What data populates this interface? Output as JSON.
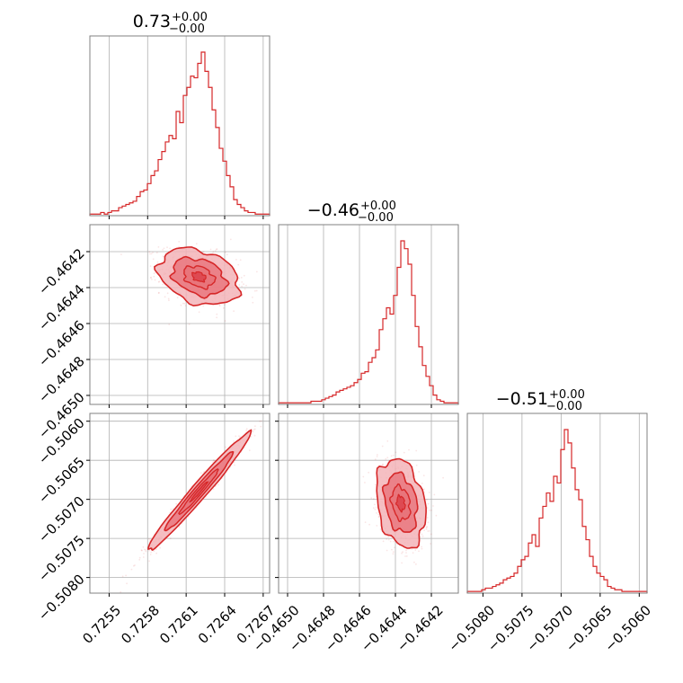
{
  "chart_data": {
    "type": "corner",
    "colors": {
      "line": "#d62728",
      "fill_inner": "#e8737a",
      "fill_outer": "#f3b4b8",
      "grid": "#b0b0b0",
      "frame": "#808080"
    },
    "grid": true,
    "parameters": [
      {
        "title_value": "0.73",
        "title_plus": "+0.00",
        "title_minus": "−0.00",
        "range": [
          0.72535,
          0.72675
        ],
        "ticks": [
          0.7255,
          0.7258,
          0.7261,
          0.7264,
          0.7267
        ],
        "tick_labels": [
          "0.7255",
          "0.7258",
          "0.7261",
          "0.7264",
          "0.7267"
        ]
      },
      {
        "title_value": "−0.46",
        "title_plus": "+0.00",
        "title_minus": "−0.00",
        "range": [
          -0.46505,
          -0.46405
        ],
        "ticks": [
          -0.465,
          -0.4648,
          -0.4646,
          -0.4644,
          -0.4642
        ],
        "tick_labels": [
          "−0.4650",
          "−0.4648",
          "−0.4646",
          "−0.4644",
          "−0.4642"
        ]
      },
      {
        "title_value": "−0.51",
        "title_plus": "+0.00",
        "title_minus": "−0.00",
        "range": [
          -0.5082,
          -0.5059
        ],
        "ticks": [
          -0.508,
          -0.5075,
          -0.507,
          -0.5065,
          -0.506
        ],
        "tick_labels": [
          "−0.5080",
          "−0.5075",
          "−0.5070",
          "−0.5065",
          "−0.5060"
        ]
      }
    ],
    "histograms": [
      {
        "param": 0,
        "bins": 50,
        "range": [
          0.72535,
          0.72675
        ],
        "counts": [
          1,
          1,
          1,
          2,
          1,
          2,
          3,
          3,
          5,
          6,
          7,
          8,
          9,
          12,
          15,
          16,
          20,
          25,
          28,
          35,
          40,
          46,
          50,
          48,
          65,
          58,
          75,
          80,
          87,
          86,
          95,
          102,
          90,
          80,
          66,
          55,
          42,
          34,
          25,
          18,
          10,
          7,
          5,
          3,
          2,
          2,
          1,
          1,
          1,
          1
        ]
      },
      {
        "param": 1,
        "bins": 50,
        "range": [
          -0.46505,
          -0.46405
        ],
        "counts": [
          1,
          1,
          1,
          1,
          1,
          1,
          1,
          1,
          1,
          2,
          2,
          2,
          3,
          4,
          5,
          6,
          8,
          9,
          10,
          11,
          12,
          14,
          16,
          20,
          21,
          27,
          30,
          35,
          48,
          55,
          62,
          58,
          70,
          88,
          105,
          100,
          90,
          70,
          50,
          37,
          25,
          18,
          12,
          6,
          3,
          2,
          1,
          1,
          1,
          1
        ]
      },
      {
        "param": 2,
        "bins": 50,
        "range": [
          -0.5082,
          -0.5059
        ],
        "counts": [
          1,
          1,
          1,
          1,
          2,
          3,
          3,
          4,
          5,
          6,
          8,
          9,
          10,
          12,
          16,
          20,
          22,
          30,
          35,
          28,
          45,
          52,
          60,
          55,
          70,
          66,
          86,
          98,
          90,
          75,
          62,
          56,
          40,
          32,
          22,
          16,
          12,
          10,
          8,
          4,
          3,
          2,
          2,
          1,
          1,
          1,
          1,
          1,
          1,
          1
        ]
      }
    ],
    "scatter_panels": [
      {
        "x_param": 0,
        "y_param": 1,
        "center": [
          0.7262,
          -0.46434
        ],
        "sigma": [
          0.00015,
          7.5e-05
        ],
        "corr": -0.3
      },
      {
        "x_param": 0,
        "y_param": 2,
        "center": [
          0.7262,
          -0.5069
        ],
        "sigma": [
          0.00019,
          0.00036
        ],
        "corr": 0.98
      },
      {
        "x_param": 1,
        "y_param": 2,
        "center": [
          -0.46437,
          -0.50705
        ],
        "sigma": [
          6.5e-05,
          0.00027
        ],
        "corr": -0.25
      }
    ]
  }
}
